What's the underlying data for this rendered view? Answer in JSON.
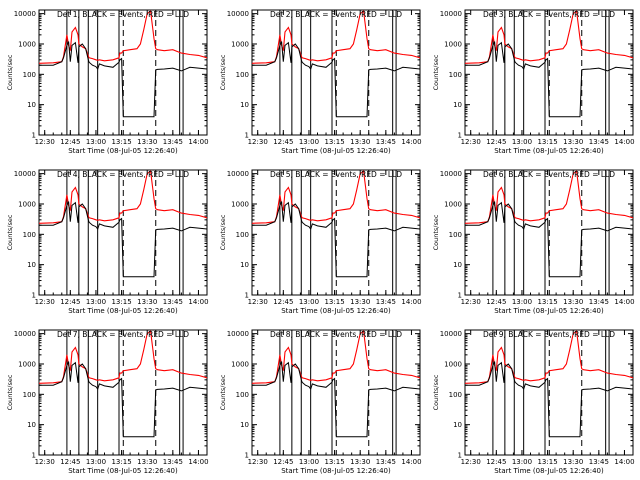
{
  "chart_data": {
    "type": "line",
    "layout": "3x3 grid of panels",
    "ylabel": "Counts/sec",
    "xlabel": "Start Time (08-Jul-05 12:26:40)",
    "y_scale": "log",
    "ylim": [
      1,
      10000
    ],
    "y_ticks": [
      "1",
      "10",
      "100",
      "1000",
      "10000"
    ],
    "xlim": [
      "12:26:40",
      "14:05:00"
    ],
    "x_ticks": [
      "12:30",
      "12:45",
      "13:00",
      "13:15",
      "13:30",
      "13:45",
      "14:00"
    ],
    "colors": {
      "events": "#000000",
      "lld": "#ff0000",
      "marker": "#000000"
    },
    "solid_markers": [
      "12:43:00",
      "12:50:00",
      "12:55:30",
      "13:01:00",
      "13:13:30",
      "13:49:00",
      "13:51:00"
    ],
    "dashed_markers": [
      "13:16:00",
      "13:35:00"
    ],
    "series_times": [
      "12:26:40",
      "12:35:00",
      "12:40:00",
      "12:41:00",
      "12:43:00",
      "12:44:00",
      "12:45:00",
      "12:46:00",
      "12:48:00",
      "12:49:30",
      "12:50:00",
      "12:52:00",
      "12:54:00",
      "12:55:30",
      "12:56:00",
      "12:58:00",
      "13:00:00",
      "13:01:00",
      "13:02:00",
      "13:05:00",
      "13:10:00",
      "13:13:30",
      "13:14:00",
      "13:15:00",
      "13:16:00",
      "13:20:00",
      "13:24:00",
      "13:26:00",
      "13:28:00",
      "13:30:00",
      "13:32:00",
      "13:34:00",
      "13:35:00",
      "13:36:00",
      "13:40:00",
      "13:45:00",
      "13:50:00",
      "13:55:00",
      "14:00:00",
      "14:05:00"
    ],
    "panels": [
      {
        "title": "Det 1, BLACK = Events, RED = LLD",
        "events": [
          200,
          200,
          260,
          350,
          900,
          1200,
          260,
          900,
          1100,
          240,
          800,
          1000,
          700,
          300,
          250,
          200,
          180,
          150,
          220,
          190,
          170,
          250,
          300,
          330,
          4,
          4,
          4,
          4,
          4,
          4,
          4,
          4,
          140,
          145,
          150,
          160,
          130,
          170,
          160,
          150
        ],
        "lld": [
          230,
          240,
          260,
          380,
          2000,
          900,
          600,
          2500,
          3500,
          2000,
          1000,
          800,
          700,
          400,
          350,
          330,
          300,
          290,
          300,
          280,
          300,
          350,
          500,
          500,
          600,
          650,
          700,
          1000,
          3000,
          10000,
          12000,
          1500,
          700,
          650,
          600,
          650,
          500,
          450,
          420,
          350
        ]
      },
      {
        "title": "Det 2, BLACK = Events, RED = LLD",
        "events": [
          200,
          200,
          260,
          350,
          900,
          1200,
          260,
          900,
          1100,
          240,
          800,
          1000,
          700,
          300,
          250,
          200,
          180,
          150,
          220,
          190,
          170,
          250,
          300,
          330,
          4,
          4,
          4,
          4,
          4,
          4,
          4,
          4,
          140,
          145,
          150,
          160,
          130,
          170,
          160,
          150
        ],
        "lld": [
          230,
          240,
          260,
          380,
          2000,
          900,
          600,
          2500,
          3500,
          2000,
          1000,
          800,
          700,
          400,
          350,
          330,
          300,
          290,
          300,
          280,
          300,
          350,
          500,
          500,
          600,
          650,
          700,
          1000,
          3000,
          10000,
          12000,
          1500,
          700,
          650,
          600,
          650,
          500,
          450,
          420,
          350
        ]
      },
      {
        "title": "Det 3, BLACK = Events, RED = LLD",
        "events": [
          200,
          200,
          260,
          350,
          900,
          1200,
          260,
          900,
          1100,
          240,
          800,
          1000,
          700,
          300,
          250,
          200,
          180,
          150,
          220,
          190,
          170,
          250,
          300,
          330,
          4,
          4,
          4,
          4,
          4,
          4,
          4,
          4,
          140,
          145,
          150,
          160,
          130,
          170,
          160,
          150
        ],
        "lld": [
          230,
          240,
          260,
          380,
          2000,
          900,
          600,
          2500,
          3500,
          2000,
          1000,
          800,
          700,
          400,
          350,
          330,
          300,
          290,
          300,
          280,
          300,
          350,
          500,
          500,
          600,
          650,
          700,
          1000,
          3000,
          10000,
          12000,
          1500,
          700,
          650,
          600,
          650,
          500,
          450,
          420,
          350
        ]
      },
      {
        "title": "Det 4, BLACK = Events, RED = LLD",
        "events": [
          200,
          200,
          260,
          350,
          900,
          1200,
          260,
          900,
          1100,
          240,
          800,
          1000,
          700,
          300,
          250,
          200,
          180,
          150,
          220,
          190,
          170,
          250,
          300,
          330,
          4,
          4,
          4,
          4,
          4,
          4,
          4,
          4,
          140,
          145,
          150,
          160,
          130,
          170,
          160,
          150
        ],
        "lld": [
          230,
          240,
          260,
          380,
          2000,
          900,
          600,
          2500,
          3500,
          2000,
          1000,
          800,
          700,
          400,
          350,
          330,
          300,
          290,
          300,
          280,
          300,
          350,
          500,
          500,
          600,
          650,
          700,
          1000,
          3000,
          10000,
          12000,
          1500,
          700,
          650,
          600,
          650,
          500,
          450,
          420,
          350
        ]
      },
      {
        "title": "Det 5, BLACK = Events, RED = LLD",
        "events": [
          200,
          200,
          260,
          350,
          900,
          1200,
          260,
          900,
          1100,
          240,
          800,
          1000,
          700,
          300,
          250,
          200,
          180,
          150,
          220,
          190,
          170,
          250,
          300,
          330,
          4,
          4,
          4,
          4,
          4,
          4,
          4,
          4,
          140,
          145,
          150,
          160,
          130,
          170,
          160,
          150
        ],
        "lld": [
          230,
          240,
          260,
          380,
          2000,
          900,
          600,
          2500,
          3500,
          2000,
          1000,
          800,
          700,
          400,
          350,
          330,
          300,
          290,
          300,
          280,
          300,
          350,
          500,
          500,
          600,
          650,
          700,
          1000,
          3000,
          10000,
          12000,
          1500,
          700,
          650,
          600,
          650,
          500,
          450,
          420,
          350
        ]
      },
      {
        "title": "Det 6, BLACK = Events, RED = LLD",
        "events": [
          200,
          200,
          260,
          350,
          900,
          1200,
          260,
          900,
          1100,
          240,
          800,
          1000,
          700,
          300,
          250,
          200,
          180,
          150,
          220,
          190,
          170,
          250,
          300,
          330,
          4,
          4,
          4,
          4,
          4,
          4,
          4,
          4,
          140,
          145,
          150,
          160,
          130,
          170,
          160,
          150
        ],
        "lld": [
          230,
          240,
          260,
          380,
          2000,
          900,
          600,
          2500,
          3500,
          2000,
          1000,
          800,
          700,
          400,
          350,
          330,
          300,
          290,
          300,
          280,
          300,
          350,
          500,
          500,
          600,
          650,
          700,
          1000,
          3000,
          10000,
          12000,
          1500,
          700,
          650,
          600,
          650,
          500,
          450,
          420,
          350
        ]
      },
      {
        "title": "Det 7, BLACK = Events, RED = LLD",
        "events": [
          200,
          200,
          260,
          350,
          900,
          1200,
          260,
          900,
          1100,
          240,
          800,
          1000,
          700,
          300,
          250,
          200,
          180,
          150,
          220,
          190,
          170,
          250,
          300,
          330,
          4,
          4,
          4,
          4,
          4,
          4,
          4,
          4,
          140,
          145,
          150,
          160,
          130,
          170,
          160,
          150
        ],
        "lld": [
          230,
          240,
          260,
          380,
          2000,
          900,
          600,
          2500,
          3500,
          2000,
          1000,
          800,
          700,
          400,
          350,
          330,
          300,
          290,
          300,
          280,
          300,
          350,
          500,
          500,
          600,
          650,
          700,
          1000,
          3000,
          10000,
          12000,
          1500,
          700,
          650,
          600,
          650,
          500,
          450,
          420,
          350
        ]
      },
      {
        "title": "Det 8, BLACK = Events, RED = LLD",
        "events": [
          200,
          200,
          260,
          350,
          900,
          1200,
          260,
          900,
          1100,
          240,
          800,
          1000,
          700,
          300,
          250,
          200,
          180,
          150,
          220,
          190,
          170,
          250,
          300,
          330,
          4,
          4,
          4,
          4,
          4,
          4,
          4,
          4,
          140,
          145,
          150,
          160,
          130,
          170,
          160,
          150
        ],
        "lld": [
          230,
          240,
          260,
          380,
          2000,
          900,
          600,
          2500,
          3500,
          2000,
          1000,
          800,
          700,
          400,
          350,
          330,
          300,
          290,
          300,
          280,
          300,
          350,
          500,
          500,
          600,
          650,
          700,
          1000,
          3000,
          10000,
          12000,
          1500,
          700,
          650,
          600,
          650,
          500,
          450,
          420,
          350
        ]
      },
      {
        "title": "Det 9, BLACK = Events, RED = LLD",
        "events": [
          200,
          200,
          260,
          350,
          900,
          1200,
          260,
          900,
          1100,
          240,
          800,
          1000,
          700,
          300,
          250,
          200,
          180,
          150,
          220,
          190,
          170,
          250,
          300,
          330,
          4,
          4,
          4,
          4,
          4,
          4,
          4,
          4,
          140,
          145,
          150,
          160,
          130,
          170,
          160,
          150
        ],
        "lld": [
          230,
          240,
          260,
          380,
          2000,
          900,
          600,
          2500,
          3500,
          2000,
          1000,
          800,
          700,
          400,
          350,
          330,
          300,
          290,
          300,
          280,
          300,
          350,
          500,
          500,
          600,
          650,
          700,
          1000,
          3000,
          10000,
          12000,
          1500,
          700,
          650,
          600,
          650,
          500,
          450,
          420,
          350
        ]
      }
    ]
  }
}
